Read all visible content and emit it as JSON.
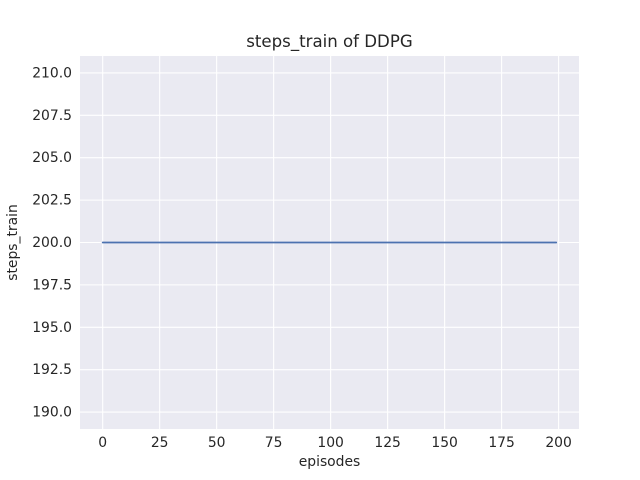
{
  "colors": {
    "figure_background": "#ffffff",
    "axes_background": "#eaeaf2",
    "grid": "#ffffff",
    "text": "#262626",
    "line": "#4c72b0"
  },
  "chart_data": {
    "type": "line",
    "title": "steps_train of DDPG",
    "xlabel": "episodes",
    "ylabel": "steps_train",
    "xlim": [
      -9.95,
      208.95
    ],
    "ylim": [
      189,
      211
    ],
    "grid": true,
    "legend": null,
    "xticks": [
      0,
      25,
      50,
      75,
      100,
      125,
      150,
      175,
      200
    ],
    "xtick_labels": [
      "0",
      "25",
      "50",
      "75",
      "100",
      "125",
      "150",
      "175",
      "200"
    ],
    "yticks": [
      190.0,
      192.5,
      195.0,
      197.5,
      200.0,
      202.5,
      205.0,
      207.5,
      210.0
    ],
    "ytick_labels": [
      "190.0",
      "192.5",
      "195.0",
      "197.5",
      "200.0",
      "202.5",
      "205.0",
      "207.5",
      "210.0"
    ],
    "series": [
      {
        "name": "steps_train",
        "color": "#4c72b0",
        "description": "constant value 200 for every episode from 0 to 199",
        "x": [
          0,
          199
        ],
        "y": [
          200,
          200
        ]
      }
    ]
  }
}
